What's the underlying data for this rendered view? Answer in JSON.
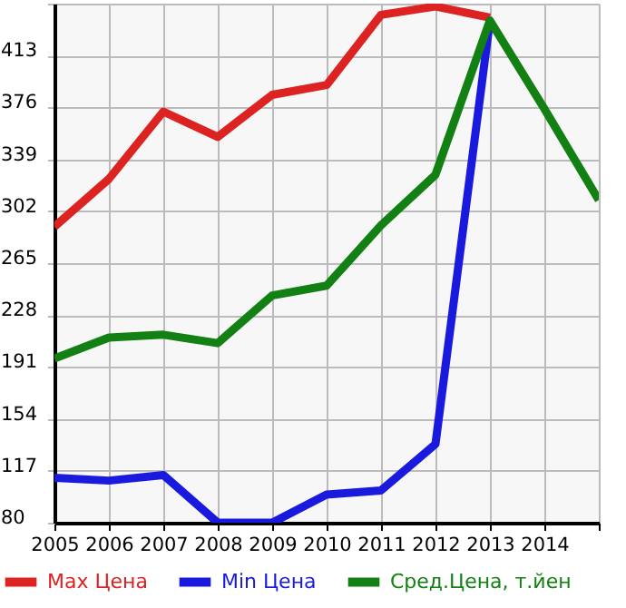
{
  "chart_data": {
    "type": "line",
    "x": [
      2005,
      2006,
      2007,
      2008,
      2009,
      2010,
      2011,
      2012,
      2013,
      2014,
      2015
    ],
    "series": [
      {
        "name": "Max Цена",
        "color": "#dd2222",
        "values": [
          291,
          325,
          373,
          355,
          385,
          392,
          442,
          448,
          440,
          null,
          null
        ]
      },
      {
        "name": "Min Цена",
        "color": "#1a1adf",
        "values": [
          112,
          110,
          114,
          80,
          80,
          100,
          103,
          136,
          438,
          null,
          null
        ]
      },
      {
        "name": "Сред.Цена, т.йен",
        "color": "#138013",
        "values": [
          197,
          212,
          214,
          208,
          242,
          249,
          292,
          328,
          438,
          375,
          310
        ]
      }
    ],
    "xlim": [
      2005,
      2015
    ],
    "xticks": [
      2005,
      2006,
      2007,
      2008,
      2009,
      2010,
      2011,
      2012,
      2013,
      2014,
      {
        "value": 2015,
        "label": null
      }
    ],
    "ylim": [
      80,
      450
    ],
    "yticks": [
      80,
      117,
      154,
      191,
      228,
      265,
      302,
      339,
      376,
      413,
      {
        "value": 450,
        "label": null
      }
    ],
    "grid": true,
    "legend": "bottom",
    "line_style": "solid",
    "marker": "none"
  }
}
